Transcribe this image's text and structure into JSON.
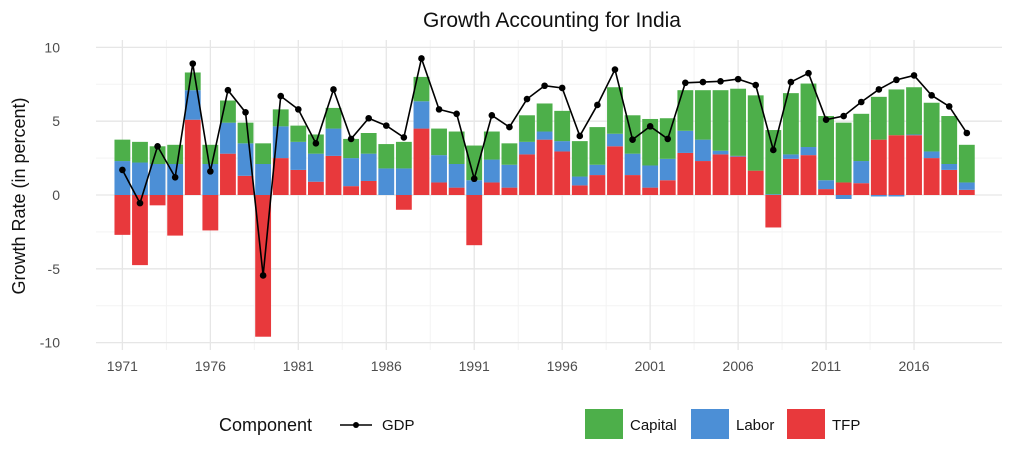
{
  "chart_data": {
    "type": "bar",
    "title": "Growth Accounting for India",
    "xlabel": "",
    "ylabel": "Growth Rate (in percent)",
    "ylim": [
      -10.5,
      10.5
    ],
    "xlim": [
      1969.5,
      2021
    ],
    "yticks": [
      -10,
      -5,
      0,
      5,
      10
    ],
    "xticks": [
      1971,
      1976,
      1981,
      1986,
      1991,
      1996,
      2001,
      2006,
      2011,
      2016
    ],
    "grid": true,
    "stacked": true,
    "legend": {
      "title": "Component",
      "placement": "bottom"
    },
    "x": [
      1971,
      1972,
      1973,
      1974,
      1975,
      1976,
      1977,
      1978,
      1979,
      1980,
      1981,
      1982,
      1983,
      1984,
      1985,
      1986,
      1987,
      1988,
      1989,
      1990,
      1991,
      1992,
      1993,
      1994,
      1995,
      1996,
      1997,
      1998,
      1999,
      2000,
      2001,
      2002,
      2003,
      2004,
      2005,
      2006,
      2007,
      2008,
      2009,
      2010,
      2011,
      2012,
      2013,
      2014,
      2015,
      2016,
      2017,
      2018,
      2019
    ],
    "series": [
      {
        "name": "TFP",
        "kind": "bar",
        "color": "#e8393c",
        "values": [
          -2.7,
          -4.75,
          -0.7,
          -2.75,
          5.1,
          -2.4,
          2.8,
          1.3,
          -9.6,
          2.5,
          1.7,
          0.9,
          2.65,
          0.6,
          0.95,
          0,
          -1.0,
          4.5,
          0.85,
          0.5,
          -3.4,
          0.85,
          0.5,
          2.75,
          3.75,
          2.95,
          0.65,
          1.35,
          3.3,
          1.35,
          0.5,
          1.0,
          2.85,
          2.3,
          2.75,
          2.6,
          1.65,
          -2.2,
          2.45,
          2.7,
          0.4,
          0.85,
          0.8,
          3.75,
          4.05,
          4.05,
          2.5,
          1.7,
          0.35
        ]
      },
      {
        "name": "Labor",
        "kind": "bar",
        "color": "#4c8fd6",
        "values": [
          2.3,
          2.2,
          2.1,
          2.1,
          2.0,
          2.1,
          2.1,
          2.2,
          2.1,
          2.15,
          1.9,
          1.9,
          1.85,
          1.9,
          1.85,
          1.8,
          1.8,
          1.85,
          1.85,
          1.6,
          1.0,
          1.55,
          1.55,
          0.85,
          0.55,
          0.7,
          0.6,
          0.7,
          0.85,
          1.45,
          1.5,
          1.45,
          1.5,
          1.45,
          0.25,
          0.05,
          0.0,
          0.05,
          0.3,
          0.55,
          0.6,
          -0.27,
          1.5,
          -0.1,
          -0.1,
          0.05,
          0.45,
          0.4,
          0.5
        ]
      },
      {
        "name": "Capital",
        "kind": "bar",
        "color": "#4daf4a",
        "values": [
          1.45,
          1.4,
          1.2,
          1.3,
          1.2,
          1.3,
          1.5,
          1.4,
          1.4,
          1.15,
          1.1,
          1.3,
          1.4,
          1.3,
          1.4,
          1.65,
          1.8,
          1.65,
          1.8,
          2.2,
          2.35,
          1.9,
          1.45,
          1.8,
          1.9,
          2.05,
          2.4,
          2.55,
          3.15,
          2.6,
          3.15,
          2.75,
          2.75,
          3.35,
          4.1,
          4.55,
          5.1,
          4.35,
          4.15,
          4.3,
          4.35,
          4.05,
          3.2,
          2.9,
          3.1,
          3.2,
          3.3,
          3.25,
          2.55
        ]
      },
      {
        "name": "GDP",
        "kind": "line",
        "color": "#000000",
        "values": [
          1.7,
          -0.55,
          3.3,
          1.2,
          8.9,
          1.6,
          7.1,
          5.6,
          -5.45,
          6.7,
          5.8,
          3.5,
          7.15,
          3.8,
          5.2,
          4.7,
          3.9,
          9.25,
          5.8,
          5.5,
          1.1,
          5.4,
          4.6,
          6.5,
          7.4,
          7.25,
          4.0,
          6.1,
          8.5,
          3.75,
          4.65,
          3.8,
          7.6,
          7.65,
          7.7,
          7.85,
          7.45,
          3.05,
          7.65,
          8.25,
          5.1,
          5.35,
          6.3,
          7.15,
          7.8,
          8.1,
          6.75,
          6.0,
          4.2
        ]
      }
    ]
  }
}
